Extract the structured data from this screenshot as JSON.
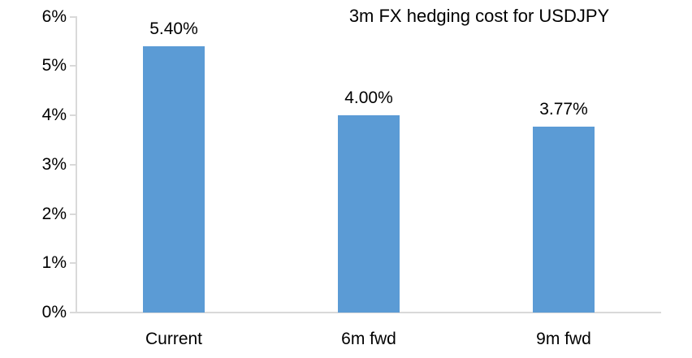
{
  "chart_data": {
    "type": "bar",
    "title": "3m FX hedging cost for USDJPY",
    "categories": [
      "Current",
      "6m fwd",
      "9m fwd"
    ],
    "values": [
      5.4,
      4.0,
      3.77
    ],
    "data_labels": [
      "5.40%",
      "4.00%",
      "3.77%"
    ],
    "ylabel": "",
    "xlabel": "",
    "ylim": [
      0,
      6
    ],
    "ytick_labels": [
      "0%",
      "1%",
      "2%",
      "3%",
      "4%",
      "5%",
      "6%"
    ],
    "legend_position": "none",
    "grid": "off",
    "bar_color": "#5b9bd5",
    "axis_color": "#d9d9d9",
    "text_color": "#000000"
  }
}
